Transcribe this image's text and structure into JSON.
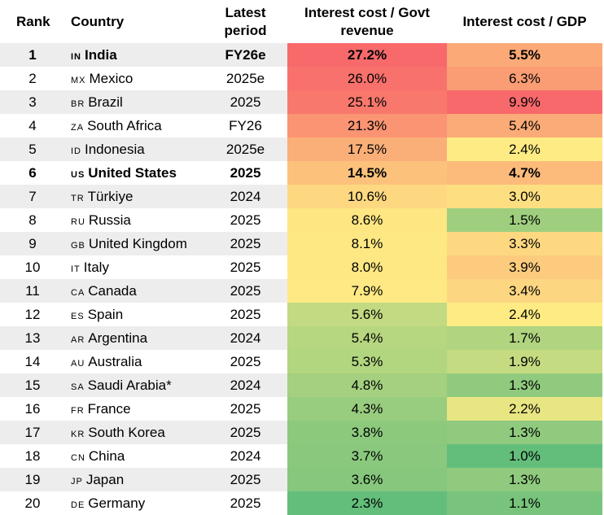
{
  "chart_data": {
    "type": "table",
    "columns": [
      "Rank",
      "Country",
      "Latest period",
      "Interest cost / Govt revenue",
      "Interest cost / GDP"
    ],
    "rows": [
      {
        "rank": "1",
        "code": "IN",
        "country": "India",
        "period": "FY26e",
        "rev": "27.2%",
        "gdp": "5.5%",
        "rev_color": "#f8696b",
        "gdp_color": "#fba977",
        "bold": true
      },
      {
        "rank": "2",
        "code": "MX",
        "country": "Mexico",
        "period": "2025e",
        "rev": "26.0%",
        "gdp": "6.3%",
        "rev_color": "#f8716c",
        "gdp_color": "#fa9c74",
        "bold": false
      },
      {
        "rank": "3",
        "code": "BR",
        "country": "Brazil",
        "period": "2025",
        "rev": "25.1%",
        "gdp": "9.9%",
        "rev_color": "#f9786d",
        "gdp_color": "#f8696b",
        "bold": false
      },
      {
        "rank": "4",
        "code": "ZA",
        "country": "South Africa",
        "period": "FY26",
        "rev": "21.3%",
        "gdp": "5.4%",
        "rev_color": "#fa9473",
        "gdp_color": "#fbab77",
        "bold": false
      },
      {
        "rank": "5",
        "code": "ID",
        "country": "Indonesia",
        "period": "2025e",
        "rev": "17.5%",
        "gdp": "2.4%",
        "rev_color": "#fbaf78",
        "gdp_color": "#feeb84",
        "bold": false
      },
      {
        "rank": "6",
        "code": "US",
        "country": "United States",
        "period": "2025",
        "rev": "14.5%",
        "gdp": "4.7%",
        "rev_color": "#fcc27c",
        "gdp_color": "#fcbb7b",
        "bold": true
      },
      {
        "rank": "7",
        "code": "TR",
        "country": "Türkiye",
        "period": "2024",
        "rev": "10.6%",
        "gdp": "3.0%",
        "rev_color": "#fdd881",
        "gdp_color": "#fddf82",
        "bold": false
      },
      {
        "rank": "8",
        "code": "RU",
        "country": "Russia",
        "period": "2025",
        "rev": "8.6%",
        "gdp": "1.5%",
        "rev_color": "#fee683",
        "gdp_color": "#9fce7f",
        "bold": false
      },
      {
        "rank": "9",
        "code": "GB",
        "country": "United Kingdom",
        "period": "2025",
        "rev": "8.1%",
        "gdp": "3.3%",
        "rev_color": "#fee884",
        "gdp_color": "#fdd881",
        "bold": false
      },
      {
        "rank": "10",
        "code": "IT",
        "country": "Italy",
        "period": "2025",
        "rev": "8.0%",
        "gdp": "3.9%",
        "rev_color": "#fee884",
        "gdp_color": "#fccb7e",
        "bold": false
      },
      {
        "rank": "11",
        "code": "CA",
        "country": "Canada",
        "period": "2025",
        "rev": "7.9%",
        "gdp": "3.4%",
        "rev_color": "#fee984",
        "gdp_color": "#fdd681",
        "bold": false
      },
      {
        "rank": "12",
        "code": "ES",
        "country": "Spain",
        "period": "2025",
        "rev": "5.6%",
        "gdp": "2.4%",
        "rev_color": "#c2da81",
        "gdp_color": "#feeb84",
        "bold": false
      },
      {
        "rank": "13",
        "code": "AR",
        "country": "Argentina",
        "period": "2024",
        "rev": "5.4%",
        "gdp": "1.7%",
        "rev_color": "#b6d680",
        "gdp_color": "#b0d47f",
        "bold": false
      },
      {
        "rank": "14",
        "code": "AU",
        "country": "Australia",
        "period": "2025",
        "rev": "5.3%",
        "gdp": "1.9%",
        "rev_color": "#b2d57f",
        "gdp_color": "#c5db81",
        "bold": false
      },
      {
        "rank": "15",
        "code": "SA",
        "country": "Saudi Arabia*",
        "period": "2024",
        "rev": "4.8%",
        "gdp": "1.3%",
        "rev_color": "#a4d07f",
        "gdp_color": "#8fca7e",
        "bold": false
      },
      {
        "rank": "16",
        "code": "FR",
        "country": "France",
        "period": "2025",
        "rev": "4.3%",
        "gdp": "2.2%",
        "rev_color": "#98cc7e",
        "gdp_color": "#e8e583",
        "bold": false
      },
      {
        "rank": "17",
        "code": "KR",
        "country": "South Korea",
        "period": "2025",
        "rev": "3.8%",
        "gdp": "1.3%",
        "rev_color": "#8cc97d",
        "gdp_color": "#8fca7e",
        "bold": false
      },
      {
        "rank": "18",
        "code": "CN",
        "country": "China",
        "period": "2024",
        "rev": "3.7%",
        "gdp": "1.0%",
        "rev_color": "#89c87d",
        "gdp_color": "#63be7b",
        "bold": false
      },
      {
        "rank": "19",
        "code": "JP",
        "country": "Japan",
        "period": "2025",
        "rev": "3.6%",
        "gdp": "1.3%",
        "rev_color": "#86c77d",
        "gdp_color": "#8fca7e",
        "bold": false
      },
      {
        "rank": "20",
        "code": "DE",
        "country": "Germany",
        "period": "2025",
        "rev": "2.3%",
        "gdp": "1.1%",
        "rev_color": "#63be7b",
        "gdp_color": "#78c47c",
        "bold": false
      }
    ]
  }
}
